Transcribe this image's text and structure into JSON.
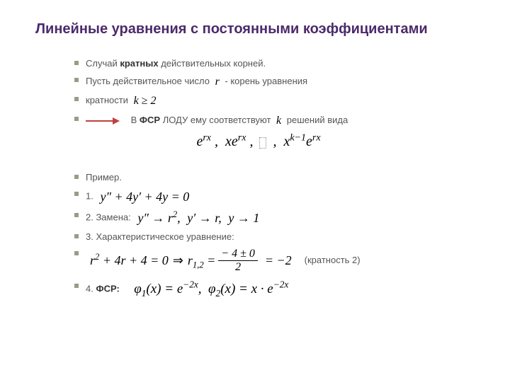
{
  "title": {
    "text": "Линейные уравнения с постоянными коэффициентами",
    "color": "#4b2a6b",
    "fontsize": 20
  },
  "bullets": {
    "b1_pre": "Случай ",
    "b1_bold": "кратных",
    "b1_post": " действительных корней.",
    "b2_pre": "Пусть действительное число   ",
    "b2_math_r": "r",
    "b2_post": " - корень уравнения",
    "b3_pre": " кратности ",
    "b3_math": "k ≥ 2",
    "b4_pre": "В ",
    "b4_bold": "ФСР",
    "b4_mid": " ЛОДУ ему соответствуют ",
    "b4_math_k": "k",
    "b4_post": " решений вида",
    "b5": "Пример.",
    "b6_pre": "1. ",
    "b7_pre": "2. Замена: ",
    "b8": "3. Характеристическое уравнение:",
    "b9_note": "(кратность 2)",
    "b10_pre": "4. ",
    "b10_bold": "ФСР:"
  },
  "formulas": {
    "solutions": "e<sup>rx</sup> ,&nbsp; xe<sup>rx</sup> , <span class=\"dotted\"></span> ,&nbsp; x<sup>k−1</sup>e<sup>rx</sup>",
    "ode": "y&Prime; + 4y&prime; + 4y = 0",
    "subst1": "y&Prime; &rarr; r<sup>2</sup>,",
    "subst2": "y&prime; &rarr; r,",
    "subst3": "y &rarr; 1",
    "char_lhs": "r<sup>2</sup> + 4r + 4 = 0",
    "imply": "⇒",
    "roots_lhs": "r<sub>1,2</sub> =",
    "roots_num": "− 4 ± 0",
    "roots_den": "2",
    "roots_rhs": "= −2",
    "fsr": "&phi;<sub>1</sub>(x) = e<sup>−2x</sup>,&nbsp;&nbsp;&phi;<sub>2</sub>(x) = x &middot; e<sup>−2x</sup>"
  },
  "style": {
    "bullet_color": "#9a9a88",
    "text_color": "#555555",
    "arrow_stroke": "#c04040",
    "arrow_fill": "#c04040",
    "background": "#ffffff"
  }
}
